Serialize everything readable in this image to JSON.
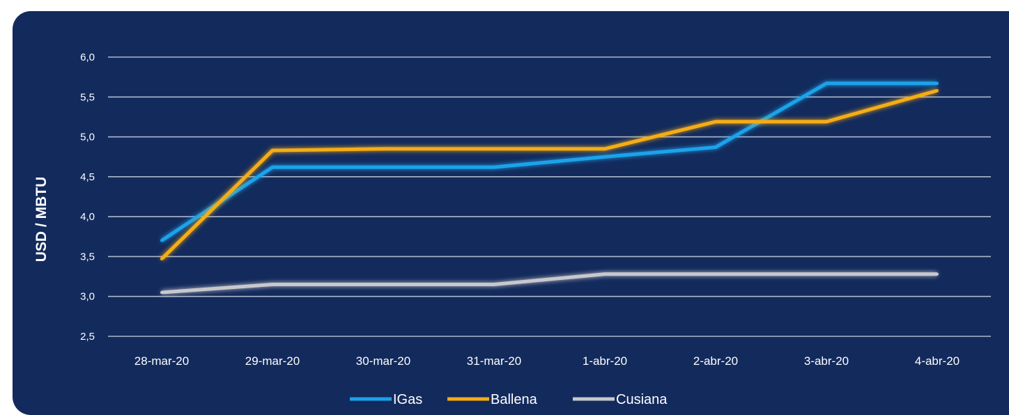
{
  "chart_data": {
    "type": "line",
    "title": "",
    "xlabel": "",
    "ylabel": "USD / MBTU",
    "categories": [
      "28-mar-20",
      "29-mar-20",
      "30-mar-20",
      "31-mar-20",
      "1-abr-20",
      "2-abr-20",
      "3-abr-20",
      "4-abr-20"
    ],
    "y_ticks": [
      "6,0",
      "5,5",
      "5,0",
      "4,5",
      "4,0",
      "3,5",
      "3,0",
      "2,5"
    ],
    "ylim": [
      2.5,
      6.0
    ],
    "grid": true,
    "legend_position": "bottom",
    "series": [
      {
        "name": "IGas",
        "color": "#1aa3ea",
        "values": [
          3.7,
          4.62,
          4.62,
          4.62,
          4.75,
          4.87,
          5.67,
          5.67
        ]
      },
      {
        "name": "Ballena",
        "color": "#f5ad14",
        "values": [
          3.47,
          4.83,
          4.85,
          4.85,
          4.85,
          5.19,
          5.19,
          5.58
        ]
      },
      {
        "name": "Cusiana",
        "color": "#c8c8cc",
        "values": [
          3.05,
          3.15,
          3.15,
          3.15,
          3.28,
          3.28,
          3.28,
          3.28
        ]
      }
    ]
  }
}
